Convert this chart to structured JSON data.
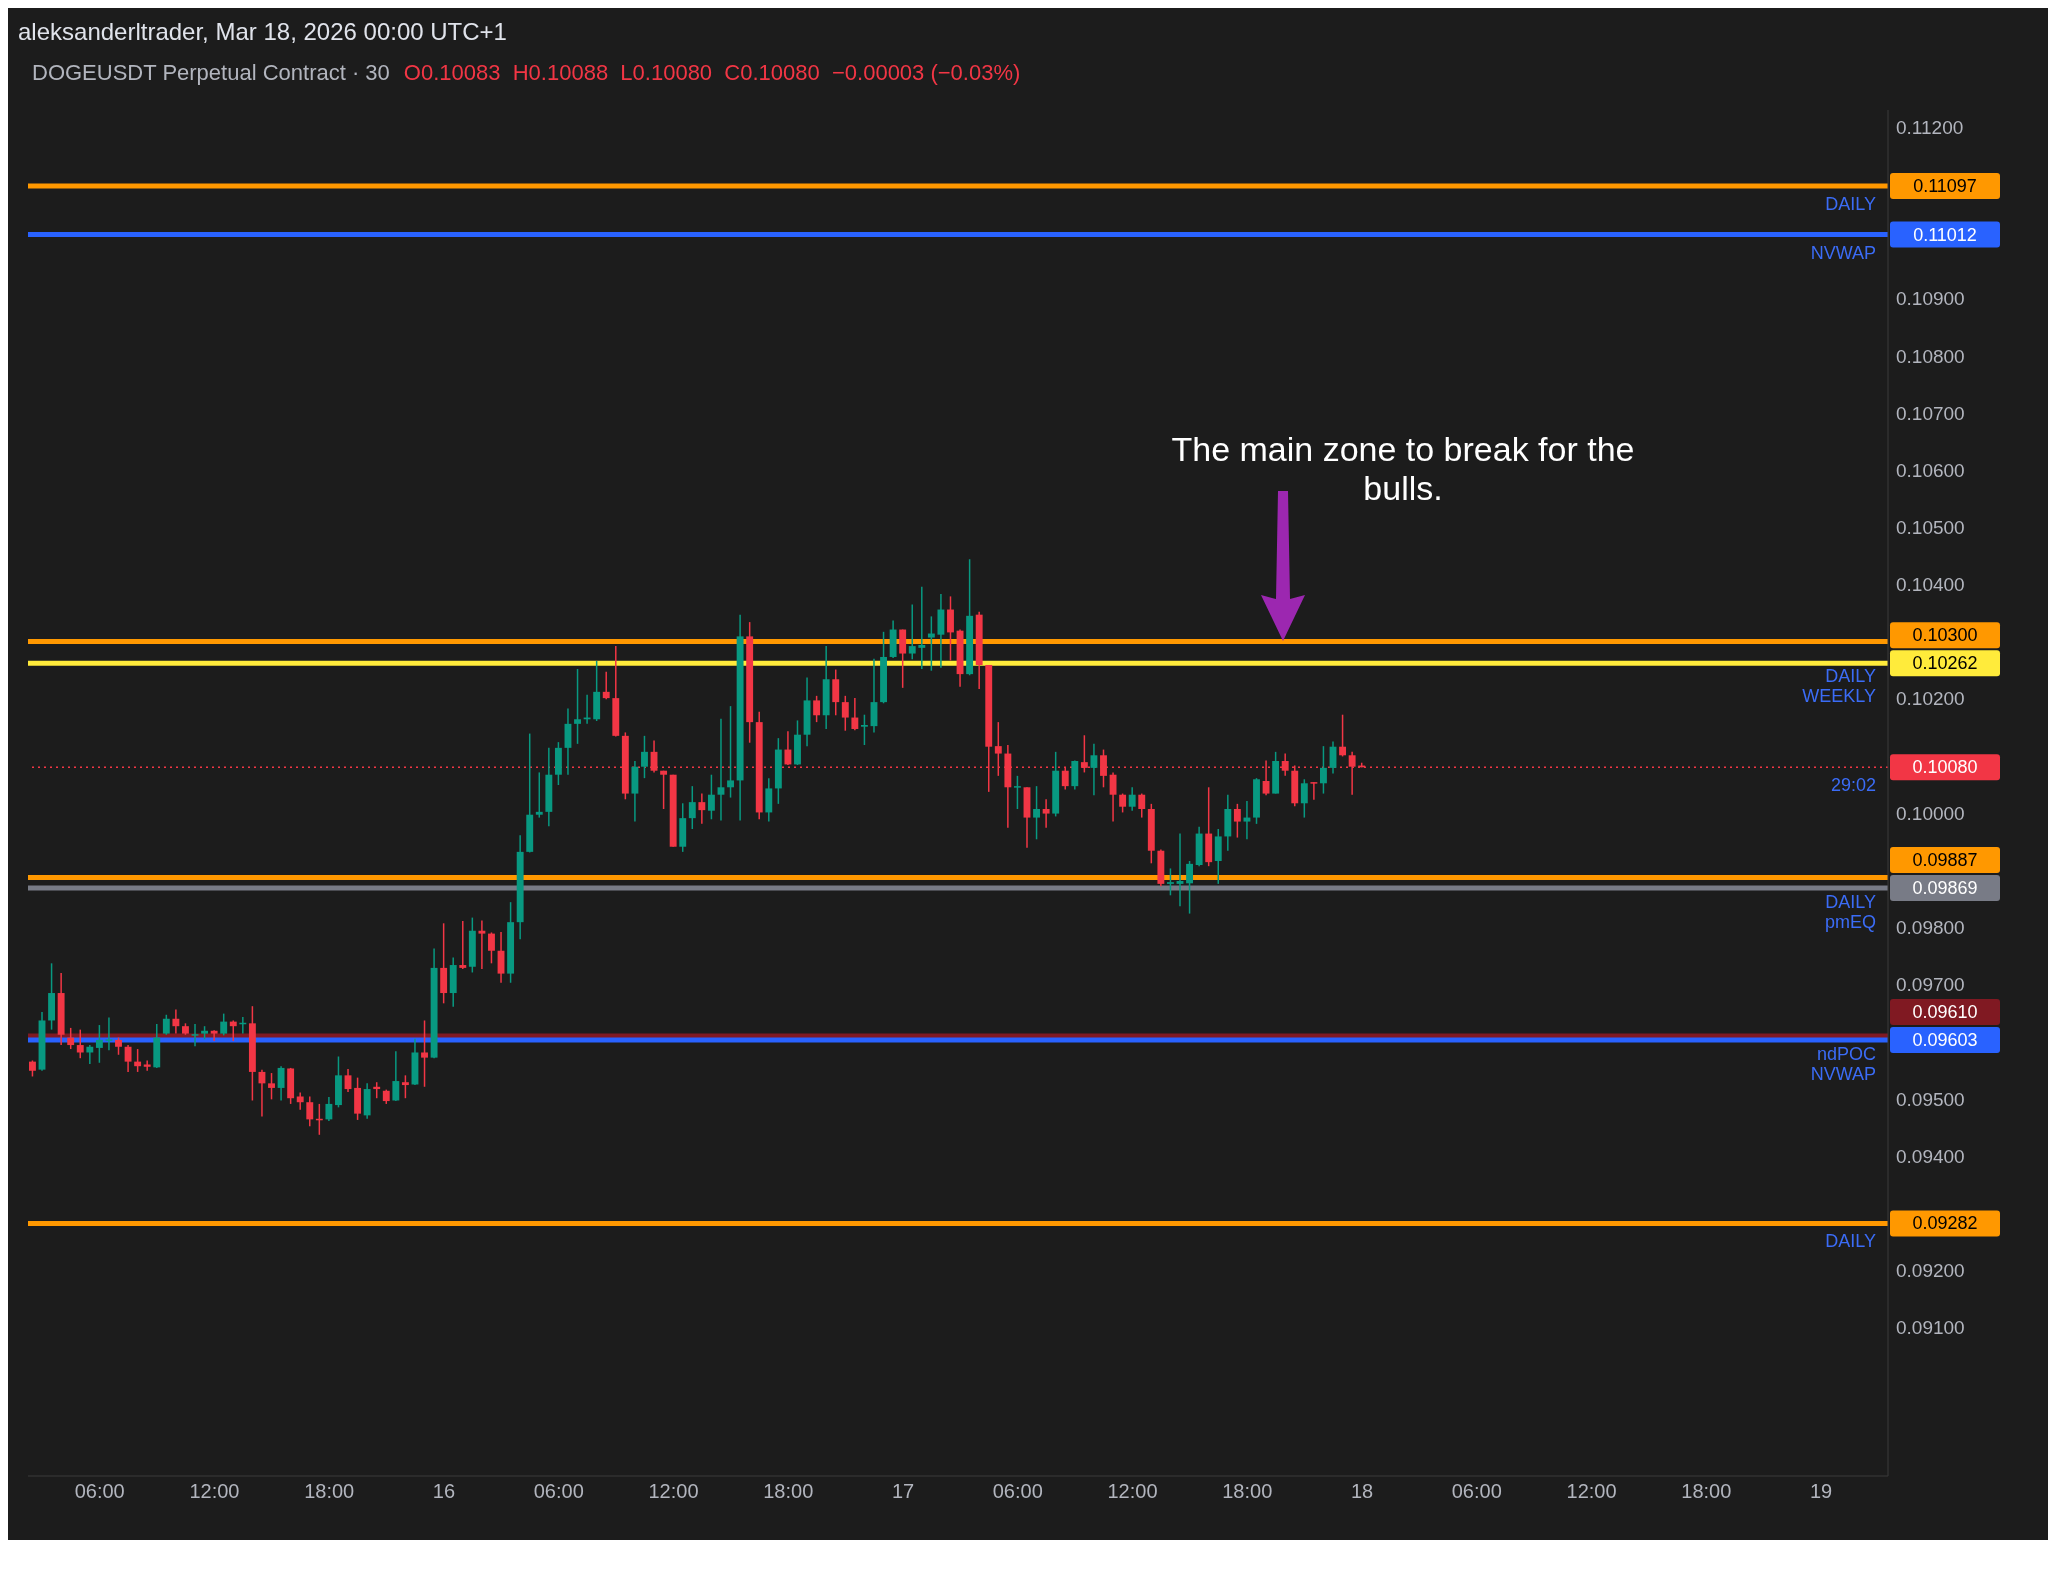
{
  "chart_data": {
    "type": "candlestick",
    "title": "aleksanderltrader, Mar 18, 2026 00:00 UTC+1",
    "subtitle": "DOGEUSDT Perpetual Contract · 30",
    "annotations": [
      "O0.10083  H0.10088  L0.10080  C0.10080  −0.00003 (−0.03%)",
      "The main zone to break for the bulls.",
      {
        "text": "DAILY",
        "y": 0.11097
      },
      {
        "text": "NVWAP",
        "y": 0.11012
      },
      {
        "text": "DAILY",
        "y": 0.103
      },
      {
        "text": "WEEKLY",
        "y": 0.10262
      },
      {
        "text": "29:02",
        "y": 0.1008
      },
      {
        "text": "DAILY",
        "y": 0.09887
      },
      {
        "text": "pmEQ",
        "y": 0.09869
      },
      {
        "text": "ndPOC",
        "y": 0.0961
      },
      {
        "text": "NVWAP",
        "y": 0.09603
      },
      {
        "text": "DAILY",
        "y": 0.09282
      }
    ],
    "x": [
      "2026-03-15T02:30",
      "2026-03-15T03:00",
      "2026-03-15T03:30",
      "2026-03-15T04:00",
      "2026-03-15T04:30",
      "2026-03-15T05:00",
      "2026-03-15T05:30",
      "2026-03-15T06:00",
      "2026-03-15T06:30",
      "2026-03-15T07:00",
      "2026-03-15T07:30",
      "2026-03-15T08:00",
      "2026-03-15T08:30",
      "2026-03-15T09:00",
      "2026-03-15T09:30",
      "2026-03-15T10:00",
      "2026-03-15T10:30",
      "2026-03-15T11:00",
      "2026-03-15T11:30",
      "2026-03-15T12:00",
      "2026-03-15T12:30",
      "2026-03-15T13:00",
      "2026-03-15T13:30",
      "2026-03-15T14:00",
      "2026-03-15T14:30",
      "2026-03-15T15:00",
      "2026-03-15T15:30",
      "2026-03-15T16:00",
      "2026-03-15T16:30",
      "2026-03-15T17:00",
      "2026-03-15T17:30",
      "2026-03-15T18:00",
      "2026-03-15T18:30",
      "2026-03-15T19:00",
      "2026-03-15T19:30",
      "2026-03-15T20:00",
      "2026-03-15T20:30",
      "2026-03-15T21:00",
      "2026-03-15T21:30",
      "2026-03-15T22:00",
      "2026-03-15T22:30",
      "2026-03-15T23:00",
      "2026-03-15T23:30",
      "2026-03-16T00:00",
      "2026-03-16T00:30",
      "2026-03-16T01:00",
      "2026-03-16T01:30",
      "2026-03-16T02:00",
      "2026-03-16T02:30",
      "2026-03-16T03:00",
      "2026-03-16T03:30",
      "2026-03-16T04:00",
      "2026-03-16T04:30",
      "2026-03-16T05:00",
      "2026-03-16T05:30",
      "2026-03-16T06:00",
      "2026-03-16T06:30",
      "2026-03-16T07:00",
      "2026-03-16T07:30",
      "2026-03-16T08:00",
      "2026-03-16T08:30",
      "2026-03-16T09:00",
      "2026-03-16T09:30",
      "2026-03-16T10:00",
      "2026-03-16T10:30",
      "2026-03-16T11:00",
      "2026-03-16T11:30",
      "2026-03-16T12:00",
      "2026-03-16T12:30",
      "2026-03-16T13:00",
      "2026-03-16T13:30",
      "2026-03-16T14:00",
      "2026-03-16T14:30",
      "2026-03-16T15:00",
      "2026-03-16T15:30",
      "2026-03-16T16:00",
      "2026-03-16T16:30",
      "2026-03-16T17:00",
      "2026-03-16T17:30",
      "2026-03-16T18:00",
      "2026-03-16T18:30",
      "2026-03-16T19:00",
      "2026-03-16T19:30",
      "2026-03-16T20:00",
      "2026-03-16T20:30",
      "2026-03-16T21:00",
      "2026-03-16T21:30",
      "2026-03-16T22:00",
      "2026-03-16T22:30",
      "2026-03-16T23:00",
      "2026-03-16T23:30",
      "2026-03-17T00:00",
      "2026-03-17T00:30",
      "2026-03-17T01:00",
      "2026-03-17T01:30",
      "2026-03-17T02:00",
      "2026-03-17T02:30",
      "2026-03-17T03:00",
      "2026-03-17T03:30",
      "2026-03-17T04:00",
      "2026-03-17T04:30",
      "2026-03-17T05:00",
      "2026-03-17T05:30",
      "2026-03-17T06:00",
      "2026-03-17T06:30",
      "2026-03-17T07:00",
      "2026-03-17T07:30",
      "2026-03-17T08:00",
      "2026-03-17T08:30",
      "2026-03-17T09:00",
      "2026-03-17T09:30",
      "2026-03-17T10:00",
      "2026-03-17T10:30",
      "2026-03-17T11:00",
      "2026-03-17T11:30",
      "2026-03-17T12:00",
      "2026-03-17T12:30",
      "2026-03-17T13:00",
      "2026-03-17T13:30",
      "2026-03-17T14:00",
      "2026-03-17T14:30",
      "2026-03-17T15:00",
      "2026-03-17T15:30",
      "2026-03-17T16:00",
      "2026-03-17T16:30",
      "2026-03-17T17:00",
      "2026-03-17T17:30",
      "2026-03-17T18:00",
      "2026-03-17T18:30",
      "2026-03-17T19:00",
      "2026-03-17T19:30",
      "2026-03-17T20:00",
      "2026-03-17T20:30",
      "2026-03-17T21:00",
      "2026-03-17T21:30",
      "2026-03-17T22:00",
      "2026-03-17T22:30",
      "2026-03-17T23:00",
      "2026-03-17T23:30",
      "2026-03-18T00:00"
    ],
    "ohlc": [
      [
        0.09565,
        0.09567,
        0.09539,
        0.09549
      ],
      [
        0.09551,
        0.09652,
        0.09549,
        0.09637
      ],
      [
        0.09637,
        0.09737,
        0.09621,
        0.09685
      ],
      [
        0.09685,
        0.0972,
        0.09594,
        0.09612
      ],
      [
        0.09607,
        0.09624,
        0.09587,
        0.09594
      ],
      [
        0.09594,
        0.09621,
        0.09571,
        0.09581
      ],
      [
        0.09581,
        0.09594,
        0.09561,
        0.09591
      ],
      [
        0.09589,
        0.09629,
        0.09563,
        0.09603
      ],
      [
        0.09602,
        0.09642,
        0.09585,
        0.09604
      ],
      [
        0.09603,
        0.09607,
        0.09577,
        0.09591
      ],
      [
        0.09591,
        0.09594,
        0.09547,
        0.09565
      ],
      [
        0.09565,
        0.09587,
        0.09547,
        0.09557
      ],
      [
        0.0956,
        0.09567,
        0.09549,
        0.09556
      ],
      [
        0.09555,
        0.09631,
        0.09554,
        0.09607
      ],
      [
        0.09614,
        0.09647,
        0.09612,
        0.0964
      ],
      [
        0.0964,
        0.09656,
        0.09614,
        0.09627
      ],
      [
        0.09627,
        0.09632,
        0.09612,
        0.09614
      ],
      [
        0.09611,
        0.09631,
        0.09592,
        0.09613
      ],
      [
        0.09614,
        0.09627,
        0.09604,
        0.09619
      ],
      [
        0.09619,
        0.0962,
        0.09601,
        0.09614
      ],
      [
        0.09614,
        0.09649,
        0.09611,
        0.09635
      ],
      [
        0.09635,
        0.09637,
        0.09601,
        0.09627
      ],
      [
        0.09632,
        0.09643,
        0.09614,
        0.09633
      ],
      [
        0.09632,
        0.09662,
        0.09497,
        0.09547
      ],
      [
        0.09547,
        0.09551,
        0.09469,
        0.09527
      ],
      [
        0.09527,
        0.09545,
        0.09499,
        0.09519
      ],
      [
        0.09519,
        0.09557,
        0.09497,
        0.09554
      ],
      [
        0.09553,
        0.09554,
        0.09491,
        0.09501
      ],
      [
        0.09504,
        0.09511,
        0.09481,
        0.09494
      ],
      [
        0.09494,
        0.09504,
        0.09452,
        0.09464
      ],
      [
        0.09465,
        0.09491,
        0.09437,
        0.09464
      ],
      [
        0.09464,
        0.09503,
        0.09461,
        0.09491
      ],
      [
        0.09489,
        0.09574,
        0.09485,
        0.09541
      ],
      [
        0.09541,
        0.09552,
        0.09512,
        0.09517
      ],
      [
        0.09519,
        0.09537,
        0.09463,
        0.09474
      ],
      [
        0.09471,
        0.09527,
        0.09465,
        0.09517
      ],
      [
        0.09521,
        0.09529,
        0.09501,
        0.09517
      ],
      [
        0.09514,
        0.09516,
        0.09491,
        0.09496
      ],
      [
        0.09497,
        0.09583,
        0.09496,
        0.09531
      ],
      [
        0.09529,
        0.09541,
        0.09501,
        0.09524
      ],
      [
        0.09525,
        0.09605,
        0.09524,
        0.09581
      ],
      [
        0.09581,
        0.09637,
        0.09521,
        0.09572
      ],
      [
        0.09572,
        0.09763,
        0.09571,
        0.09729
      ],
      [
        0.09729,
        0.09807,
        0.09667,
        0.09685
      ],
      [
        0.09685,
        0.09747,
        0.09661,
        0.09734
      ],
      [
        0.09734,
        0.09811,
        0.09727,
        0.09729
      ],
      [
        0.09731,
        0.09817,
        0.09721,
        0.09794
      ],
      [
        0.09794,
        0.09812,
        0.09727,
        0.09789
      ],
      [
        0.09789,
        0.09791,
        0.09737,
        0.09759
      ],
      [
        0.09759,
        0.09792,
        0.09703,
        0.09719
      ],
      [
        0.09719,
        0.09844,
        0.09703,
        0.09809
      ],
      [
        0.09809,
        0.09961,
        0.09779,
        0.09932
      ],
      [
        0.09932,
        0.10139,
        0.09931,
        0.09997
      ],
      [
        0.09997,
        0.10071,
        0.09992,
        0.10002
      ],
      [
        0.10002,
        0.10114,
        0.09977,
        0.10067
      ],
      [
        0.10067,
        0.10124,
        0.10049,
        0.10114
      ],
      [
        0.10114,
        0.10183,
        0.10067,
        0.10156
      ],
      [
        0.10156,
        0.10252,
        0.10121,
        0.10164
      ],
      [
        0.10164,
        0.10207,
        0.10156,
        0.10167
      ],
      [
        0.10164,
        0.10266,
        0.10161,
        0.10212
      ],
      [
        0.10212,
        0.10247,
        0.10199,
        0.10201
      ],
      [
        0.10201,
        0.10292,
        0.10134,
        0.10135
      ],
      [
        0.10135,
        0.10141,
        0.10024,
        0.10034
      ],
      [
        0.10034,
        0.10091,
        0.09985,
        0.10081
      ],
      [
        0.10081,
        0.10135,
        0.10061,
        0.10107
      ],
      [
        0.10107,
        0.10127,
        0.10071,
        0.10074
      ],
      [
        0.10074,
        0.10074,
        0.10007,
        0.10067
      ],
      [
        0.10067,
        0.10067,
        0.09941,
        0.09941
      ],
      [
        0.09941,
        0.10017,
        0.09932,
        0.09991
      ],
      [
        0.09991,
        0.10047,
        0.09972,
        0.10019
      ],
      [
        0.10019,
        0.10034,
        0.09981,
        0.10005
      ],
      [
        0.10004,
        0.10067,
        0.09989,
        0.10032
      ],
      [
        0.10032,
        0.10165,
        0.09987,
        0.10045
      ],
      [
        0.10045,
        0.10187,
        0.10027,
        0.10057
      ],
      [
        0.10057,
        0.10347,
        0.09987,
        0.10309
      ],
      [
        0.10309,
        0.10334,
        0.10123,
        0.10159
      ],
      [
        0.10159,
        0.10177,
        0.09989,
        0.10001
      ],
      [
        0.10001,
        0.10061,
        0.09985,
        0.10043
      ],
      [
        0.10043,
        0.10131,
        0.10016,
        0.10111
      ],
      [
        0.10111,
        0.10143,
        0.10084,
        0.10085
      ],
      [
        0.10085,
        0.10162,
        0.10084,
        0.10137
      ],
      [
        0.10137,
        0.10237,
        0.10117,
        0.10197
      ],
      [
        0.10197,
        0.10205,
        0.10159,
        0.10171
      ],
      [
        0.10171,
        0.10292,
        0.10147,
        0.10234
      ],
      [
        0.10234,
        0.10251,
        0.10171,
        0.10194
      ],
      [
        0.10194,
        0.10205,
        0.10144,
        0.10167
      ],
      [
        0.10167,
        0.10201,
        0.10145,
        0.10147
      ],
      [
        0.10151,
        0.10172,
        0.10119,
        0.10154
      ],
      [
        0.10152,
        0.1027,
        0.10141,
        0.10194
      ],
      [
        0.10194,
        0.10317,
        0.10192,
        0.10273
      ],
      [
        0.10273,
        0.10337,
        0.10271,
        0.10321
      ],
      [
        0.10321,
        0.10321,
        0.10219,
        0.10279
      ],
      [
        0.10279,
        0.10365,
        0.10269,
        0.10292
      ],
      [
        0.10289,
        0.10396,
        0.10252,
        0.10294
      ],
      [
        0.10307,
        0.10344,
        0.10249,
        0.10314
      ],
      [
        0.10312,
        0.10383,
        0.10254,
        0.10356
      ],
      [
        0.10356,
        0.10379,
        0.10267,
        0.10316
      ],
      [
        0.10319,
        0.10321,
        0.10221,
        0.10243
      ],
      [
        0.10243,
        0.10444,
        0.10241,
        0.10345
      ],
      [
        0.10347,
        0.10352,
        0.10217,
        0.10259
      ],
      [
        0.10259,
        0.10259,
        0.10037,
        0.10116
      ],
      [
        0.10117,
        0.10159,
        0.10065,
        0.10104
      ],
      [
        0.10104,
        0.10119,
        0.09974,
        0.10045
      ],
      [
        0.10045,
        0.10065,
        0.10007,
        0.10047
      ],
      [
        0.10045,
        0.10045,
        0.09939,
        0.09992
      ],
      [
        0.09992,
        0.10047,
        0.09954,
        0.10007
      ],
      [
        0.10007,
        0.10024,
        0.09974,
        0.09999
      ],
      [
        0.09999,
        0.10107,
        0.09994,
        0.10074
      ],
      [
        0.10074,
        0.10079,
        0.10041,
        0.10047
      ],
      [
        0.10047,
        0.10092,
        0.10041,
        0.10091
      ],
      [
        0.10089,
        0.10136,
        0.10071,
        0.10079
      ],
      [
        0.10079,
        0.10121,
        0.10031,
        0.10101
      ],
      [
        0.10101,
        0.10111,
        0.10045,
        0.10065
      ],
      [
        0.10067,
        0.10071,
        0.09985,
        0.10032
      ],
      [
        0.10032,
        0.10034,
        0.10001,
        0.10011
      ],
      [
        0.10011,
        0.10045,
        0.10004,
        0.10032
      ],
      [
        0.10032,
        0.10034,
        0.09992,
        0.10007
      ],
      [
        0.10007,
        0.10016,
        0.09912,
        0.09934
      ],
      [
        0.09934,
        0.09936,
        0.09872,
        0.09876
      ],
      [
        0.09876,
        0.09903,
        0.09856,
        0.09879
      ],
      [
        0.09876,
        0.09964,
        0.09837,
        0.09881
      ],
      [
        0.09877,
        0.09916,
        0.09824,
        0.09911
      ],
      [
        0.09909,
        0.09976,
        0.09907,
        0.09964
      ],
      [
        0.09964,
        0.10045,
        0.09907,
        0.09914
      ],
      [
        0.09916,
        0.09972,
        0.09876,
        0.09959
      ],
      [
        0.09959,
        0.10032,
        0.09934,
        0.10007
      ],
      [
        0.10007,
        0.10016,
        0.09957,
        0.09985
      ],
      [
        0.09985,
        0.10021,
        0.09954,
        0.09992
      ],
      [
        0.09992,
        0.10061,
        0.09981,
        0.10059
      ],
      [
        0.10056,
        0.10092,
        0.10031,
        0.10034
      ],
      [
        0.10034,
        0.10107,
        0.10034,
        0.10091
      ],
      [
        0.10091,
        0.10104,
        0.10065,
        0.10074
      ],
      [
        0.10074,
        0.10083,
        0.10012,
        0.10017
      ],
      [
        0.10017,
        0.10059,
        0.09992,
        0.10052
      ],
      [
        0.10054,
        0.10054,
        0.10023,
        0.10052
      ],
      [
        0.10052,
        0.10117,
        0.10034,
        0.10079
      ],
      [
        0.10079,
        0.10125,
        0.10069,
        0.10116
      ],
      [
        0.10116,
        0.10172,
        0.10099,
        0.10101
      ],
      [
        0.10101,
        0.10107,
        0.10032,
        0.10081
      ],
      [
        0.10083,
        0.10088,
        0.1008,
        0.1008
      ]
    ],
    "colors": [
      "#f23645",
      "#089981",
      "#089981",
      "#f23645",
      "#f23645",
      "#f23645",
      "#089981",
      "#089981",
      "#089981",
      "#f23645",
      "#f23645",
      "#f23645",
      "#f23645",
      "#089981",
      "#089981",
      "#f23645",
      "#f23645",
      "#089981",
      "#089981",
      "#f23645",
      "#089981",
      "#f23645",
      "#089981",
      "#f23645",
      "#f23645",
      "#f23645",
      "#089981",
      "#f23645",
      "#f23645",
      "#f23645",
      "#f23645",
      "#089981",
      "#089981",
      "#f23645",
      "#f23645",
      "#089981",
      "#f23645",
      "#f23645",
      "#089981",
      "#f23645",
      "#089981",
      "#f23645",
      "#089981",
      "#f23645",
      "#089981",
      "#f23645",
      "#089981",
      "#f23645",
      "#f23645",
      "#f23645",
      "#089981",
      "#089981",
      "#089981",
      "#089981",
      "#089981",
      "#089981",
      "#089981",
      "#089981",
      "#089981",
      "#089981",
      "#f23645",
      "#f23645",
      "#f23645",
      "#089981",
      "#089981",
      "#f23645",
      "#f23645",
      "#f23645",
      "#089981",
      "#089981",
      "#f23645",
      "#089981",
      "#089981",
      "#089981",
      "#089981",
      "#f23645",
      "#f23645",
      "#089981",
      "#089981",
      "#f23645",
      "#089981",
      "#089981",
      "#f23645",
      "#089981",
      "#f23645",
      "#f23645",
      "#f23645",
      "#089981",
      "#089981",
      "#089981",
      "#089981",
      "#f23645",
      "#089981",
      "#089981",
      "#089981",
      "#089981",
      "#f23645",
      "#f23645",
      "#089981",
      "#f23645",
      "#f23645",
      "#f23645",
      "#f23645",
      "#089981",
      "#f23645",
      "#089981",
      "#f23645",
      "#089981",
      "#f23645",
      "#089981",
      "#f23645",
      "#089981",
      "#f23645",
      "#f23645",
      "#f23645",
      "#089981",
      "#f23645",
      "#f23645",
      "#f23645",
      "#089981",
      "#089981",
      "#089981",
      "#089981",
      "#f23645",
      "#089981",
      "#089981",
      "#f23645",
      "#089981",
      "#089981",
      "#f23645",
      "#089981",
      "#f23645",
      "#f23645",
      "#089981",
      "#f23645",
      "#089981",
      "#089981",
      "#f23645",
      "#f23645",
      "#f23645"
    ],
    "xlim": [
      "2026-03-15T02:15",
      "2026-03-19T03:30"
    ],
    "xticks": [
      {
        "value": "2026-03-15T06:00",
        "label": "06:00"
      },
      {
        "value": "2026-03-15T12:00",
        "label": "12:00"
      },
      {
        "value": "2026-03-15T18:00",
        "label": "18:00"
      },
      {
        "value": "2026-03-16T00:00",
        "label": "16"
      },
      {
        "value": "2026-03-16T06:00",
        "label": "06:00"
      },
      {
        "value": "2026-03-16T12:00",
        "label": "12:00"
      },
      {
        "value": "2026-03-16T18:00",
        "label": "18:00"
      },
      {
        "value": "2026-03-17T00:00",
        "label": "17"
      },
      {
        "value": "2026-03-17T06:00",
        "label": "06:00"
      },
      {
        "value": "2026-03-17T12:00",
        "label": "12:00"
      },
      {
        "value": "2026-03-17T18:00",
        "label": "18:00"
      },
      {
        "value": "2026-03-18T00:00",
        "label": "18"
      },
      {
        "value": "2026-03-18T06:00",
        "label": "06:00"
      },
      {
        "value": "2026-03-18T12:00",
        "label": "12:00"
      },
      {
        "value": "2026-03-18T18:00",
        "label": "18:00"
      },
      {
        "value": "2026-03-19T00:00",
        "label": "19"
      }
    ],
    "ylim": [
      0.0884,
      0.1123
    ],
    "yticks": [
      {
        "value": 0.091,
        "label": "0.09100"
      },
      {
        "value": 0.092,
        "label": "0.09200"
      },
      {
        "value": 0.094,
        "label": "0.09400"
      },
      {
        "value": 0.095,
        "label": "0.09500"
      },
      {
        "value": 0.097,
        "label": "0.09700"
      },
      {
        "value": 0.098,
        "label": "0.09800"
      },
      {
        "value": 0.1,
        "label": "0.10000"
      },
      {
        "value": 0.102,
        "label": "0.10200"
      },
      {
        "value": 0.104,
        "label": "0.10400"
      },
      {
        "value": 0.105,
        "label": "0.10500"
      },
      {
        "value": 0.106,
        "label": "0.10600"
      },
      {
        "value": 0.107,
        "label": "0.10700"
      },
      {
        "value": 0.108,
        "label": "0.10800"
      },
      {
        "value": 0.109,
        "label": "0.10900"
      },
      {
        "value": 0.112,
        "label": "0.11200"
      }
    ],
    "ref_lines": [
      {
        "axis": "y",
        "value": 0.11097,
        "label": "0.11097",
        "color": "#ff9800",
        "line_style": "solid"
      },
      {
        "axis": "y",
        "value": 0.11012,
        "label": "0.11012",
        "color": "#2962ff",
        "line_style": "solid"
      },
      {
        "axis": "y",
        "value": 0.103,
        "label": "0.10300",
        "color": "#ff9800",
        "line_style": "solid"
      },
      {
        "axis": "y",
        "value": 0.10262,
        "label": "0.10262",
        "color": "#ffeb3b",
        "line_style": "solid"
      },
      {
        "axis": "y",
        "value": 0.1008,
        "label": "0.10080",
        "color": "#f23645",
        "line_style": "dotted"
      },
      {
        "axis": "y",
        "value": 0.09887,
        "label": "0.09887",
        "color": "#ff9800",
        "line_style": "solid"
      },
      {
        "axis": "y",
        "value": 0.09869,
        "label": "0.09869",
        "color": "#787b86",
        "line_style": "solid"
      },
      {
        "axis": "y",
        "value": 0.0961,
        "label": "0.09610",
        "color": "#801922",
        "line_style": "solid"
      },
      {
        "axis": "y",
        "value": 0.09603,
        "label": "0.09603",
        "color": "#2962ff",
        "line_style": "solid"
      },
      {
        "axis": "y",
        "value": 0.09282,
        "label": "0.09282",
        "color": "#ff9800",
        "line_style": "solid"
      }
    ]
  }
}
